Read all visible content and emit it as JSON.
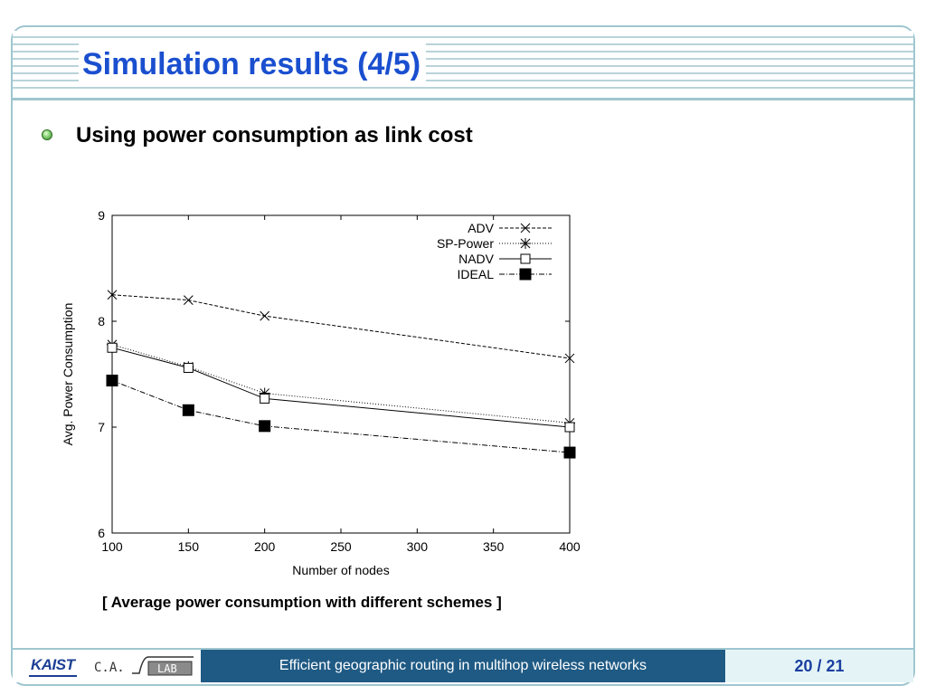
{
  "slide": {
    "title": "Simulation results (4/5)",
    "bullet": "Using power consumption as link cost",
    "caption": "[ Average power consumption with different schemes ]"
  },
  "footer": {
    "logo_kaist": "KAIST",
    "logo_lab_left": "C.A.",
    "logo_lab_right": "LAB",
    "title": "Efficient geographic routing in multihop wireless networks",
    "page": "20 / 21"
  },
  "colors": {
    "title": "#1a4fcf",
    "footer_bar": "#1f5a84",
    "footer_page_bg": "#e4f4f6",
    "frame": "#9fc6cf"
  },
  "chart_data": {
    "type": "line",
    "xlabel": "Number of nodes",
    "ylabel": "Avg. Power Consumption",
    "xlim": [
      100,
      400
    ],
    "ylim": [
      6,
      9
    ],
    "xticks": [
      100,
      150,
      200,
      250,
      300,
      350,
      400
    ],
    "yticks": [
      6,
      7,
      8,
      9
    ],
    "legend_position": "top-right",
    "x": [
      100,
      150,
      200,
      400
    ],
    "series": [
      {
        "name": "ADV",
        "marker": "x",
        "dash": "4,2",
        "values": [
          8.25,
          8.2,
          8.05,
          7.65
        ]
      },
      {
        "name": "SP-Power",
        "marker": "star",
        "dash": "1,2",
        "values": [
          7.78,
          7.57,
          7.32,
          7.04
        ]
      },
      {
        "name": "NADV",
        "marker": "square-open",
        "dash": "",
        "values": [
          7.75,
          7.56,
          7.27,
          7.0
        ]
      },
      {
        "name": "IDEAL",
        "marker": "square-filled",
        "dash": "6,2,1,2",
        "values": [
          7.44,
          7.16,
          7.01,
          6.76
        ]
      }
    ]
  }
}
